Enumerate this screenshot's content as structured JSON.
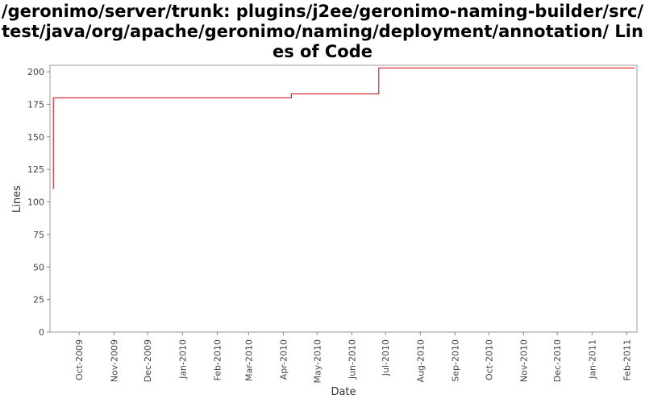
{
  "chart_data": {
    "type": "line",
    "title": "/geronimo/server/trunk: plugins/j2ee/geronimo-naming-builder/src/test/java/org/apache/geronimo/naming/deployment/annotation/ Lines of Code",
    "xlabel": "Date",
    "ylabel": "Lines",
    "ylim": [
      0,
      205
    ],
    "xlim": [
      "2009-09-05",
      "2011-02-10"
    ],
    "yticks": [
      "0",
      "25",
      "50",
      "75",
      "100",
      "125",
      "150",
      "175",
      "200"
    ],
    "xticks": [
      "Oct-2009",
      "Nov-2009",
      "Dec-2009",
      "Jan-2010",
      "Feb-2010",
      "Mar-2010",
      "Apr-2010",
      "May-2010",
      "Jun-2010",
      "Jul-2010",
      "Aug-2010",
      "Sep-2010",
      "Oct-2010",
      "Nov-2010",
      "Dec-2010",
      "Jan-2011",
      "Feb-2011"
    ],
    "grid": false,
    "line_style": "step",
    "series": [
      {
        "color": "#cc0000",
        "points": [
          {
            "x": "2009-09-08",
            "y": 110
          },
          {
            "x": "2009-09-08",
            "y": 180
          },
          {
            "x": "2010-04-08",
            "y": 180
          },
          {
            "x": "2010-04-08",
            "y": 183
          },
          {
            "x": "2010-06-25",
            "y": 183
          },
          {
            "x": "2010-06-25",
            "y": 203
          },
          {
            "x": "2011-02-08",
            "y": 203
          }
        ]
      }
    ]
  }
}
